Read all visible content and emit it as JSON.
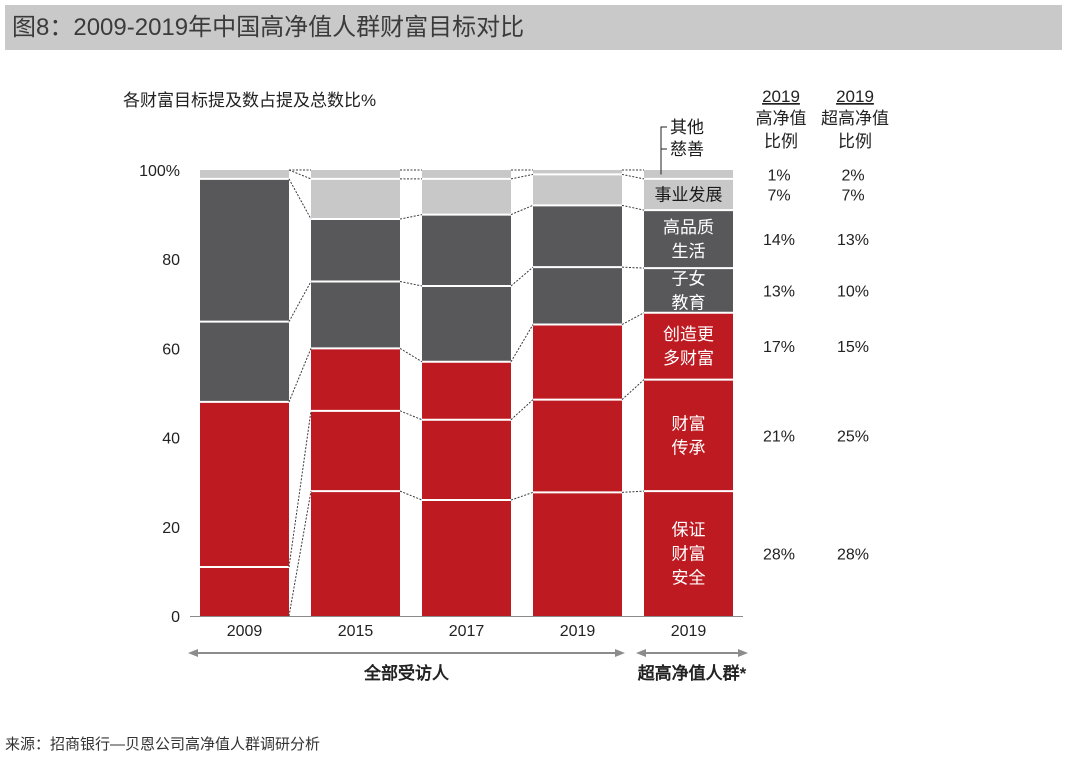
{
  "chart_data": {
    "type": "bar",
    "stacked": true,
    "title": "图8：2009-2019年中国高净值人群财富目标对比",
    "ylabel": "各财富目标提及数占提及总数比%",
    "ylim": [
      0,
      100
    ],
    "yticks": [
      {
        "value": 0,
        "label": "0"
      },
      {
        "value": 20,
        "label": "20"
      },
      {
        "value": 40,
        "label": "40"
      },
      {
        "value": 60,
        "label": "60"
      },
      {
        "value": 80,
        "label": "80"
      },
      {
        "value": 100,
        "label": "100%"
      }
    ],
    "grid": false,
    "categories": [
      "2009",
      "2015",
      "2017",
      "2019",
      "2019"
    ],
    "groups": [
      {
        "label": "全部受访人",
        "categories": [
          0,
          1,
          2,
          3
        ]
      },
      {
        "label": "超高净值人群*",
        "categories": [
          4
        ]
      }
    ],
    "series": [
      {
        "name_lines": [
          "保证",
          "财富",
          "安全"
        ],
        "color": "#be1a21",
        "text_color": "#ffffff",
        "label_placement": "inside",
        "values": [
          0,
          28,
          26,
          28,
          28
        ]
      },
      {
        "name_lines": [
          "财富",
          "传承"
        ],
        "color": "#be1a21",
        "text_color": "#ffffff",
        "label_placement": "inside",
        "values": [
          11,
          18,
          18,
          21,
          25
        ]
      },
      {
        "name_lines": [
          "创造更",
          "多财富"
        ],
        "color": "#be1a21",
        "text_color": "#ffffff",
        "label_placement": "inside",
        "values": [
          37,
          14,
          13,
          17,
          15
        ]
      },
      {
        "name_lines": [
          "子女",
          "教育"
        ],
        "color": "#58585a",
        "text_color": "#ffffff",
        "label_placement": "inside",
        "values": [
          18,
          15,
          17,
          13,
          10
        ]
      },
      {
        "name_lines": [
          "高品质",
          "生活"
        ],
        "color": "#58585a",
        "text_color": "#ffffff",
        "label_placement": "inside",
        "values": [
          32,
          14,
          16,
          14,
          13
        ]
      },
      {
        "name_lines": [
          "事业发展"
        ],
        "color": "#c8c8c8",
        "text_color": "#1a1a1a",
        "label_placement": "inside",
        "values": [
          2,
          9,
          8,
          7,
          7
        ]
      },
      {
        "name_lines": [
          "其他",
          "慈善"
        ],
        "color": "#c8c8c8",
        "text_color": "#1a1a1a",
        "label_placement": "callout",
        "values": [
          0,
          2,
          2,
          1,
          2
        ]
      }
    ]
  },
  "share_table": {
    "columns": [
      {
        "year": "2019",
        "header_lines": [
          "高净值",
          "比例"
        ],
        "values": [
          "28%",
          "21%",
          "17%",
          "13%",
          "14%",
          "7%",
          "1%"
        ]
      },
      {
        "year": "2019",
        "header_lines": [
          "超高净值",
          "比例"
        ],
        "values": [
          "28%",
          "25%",
          "15%",
          "10%",
          "13%",
          "7%",
          "2%"
        ]
      }
    ]
  },
  "footer": {
    "source": "来源：招商银行—贝恩公司高净值人群调研分析"
  }
}
